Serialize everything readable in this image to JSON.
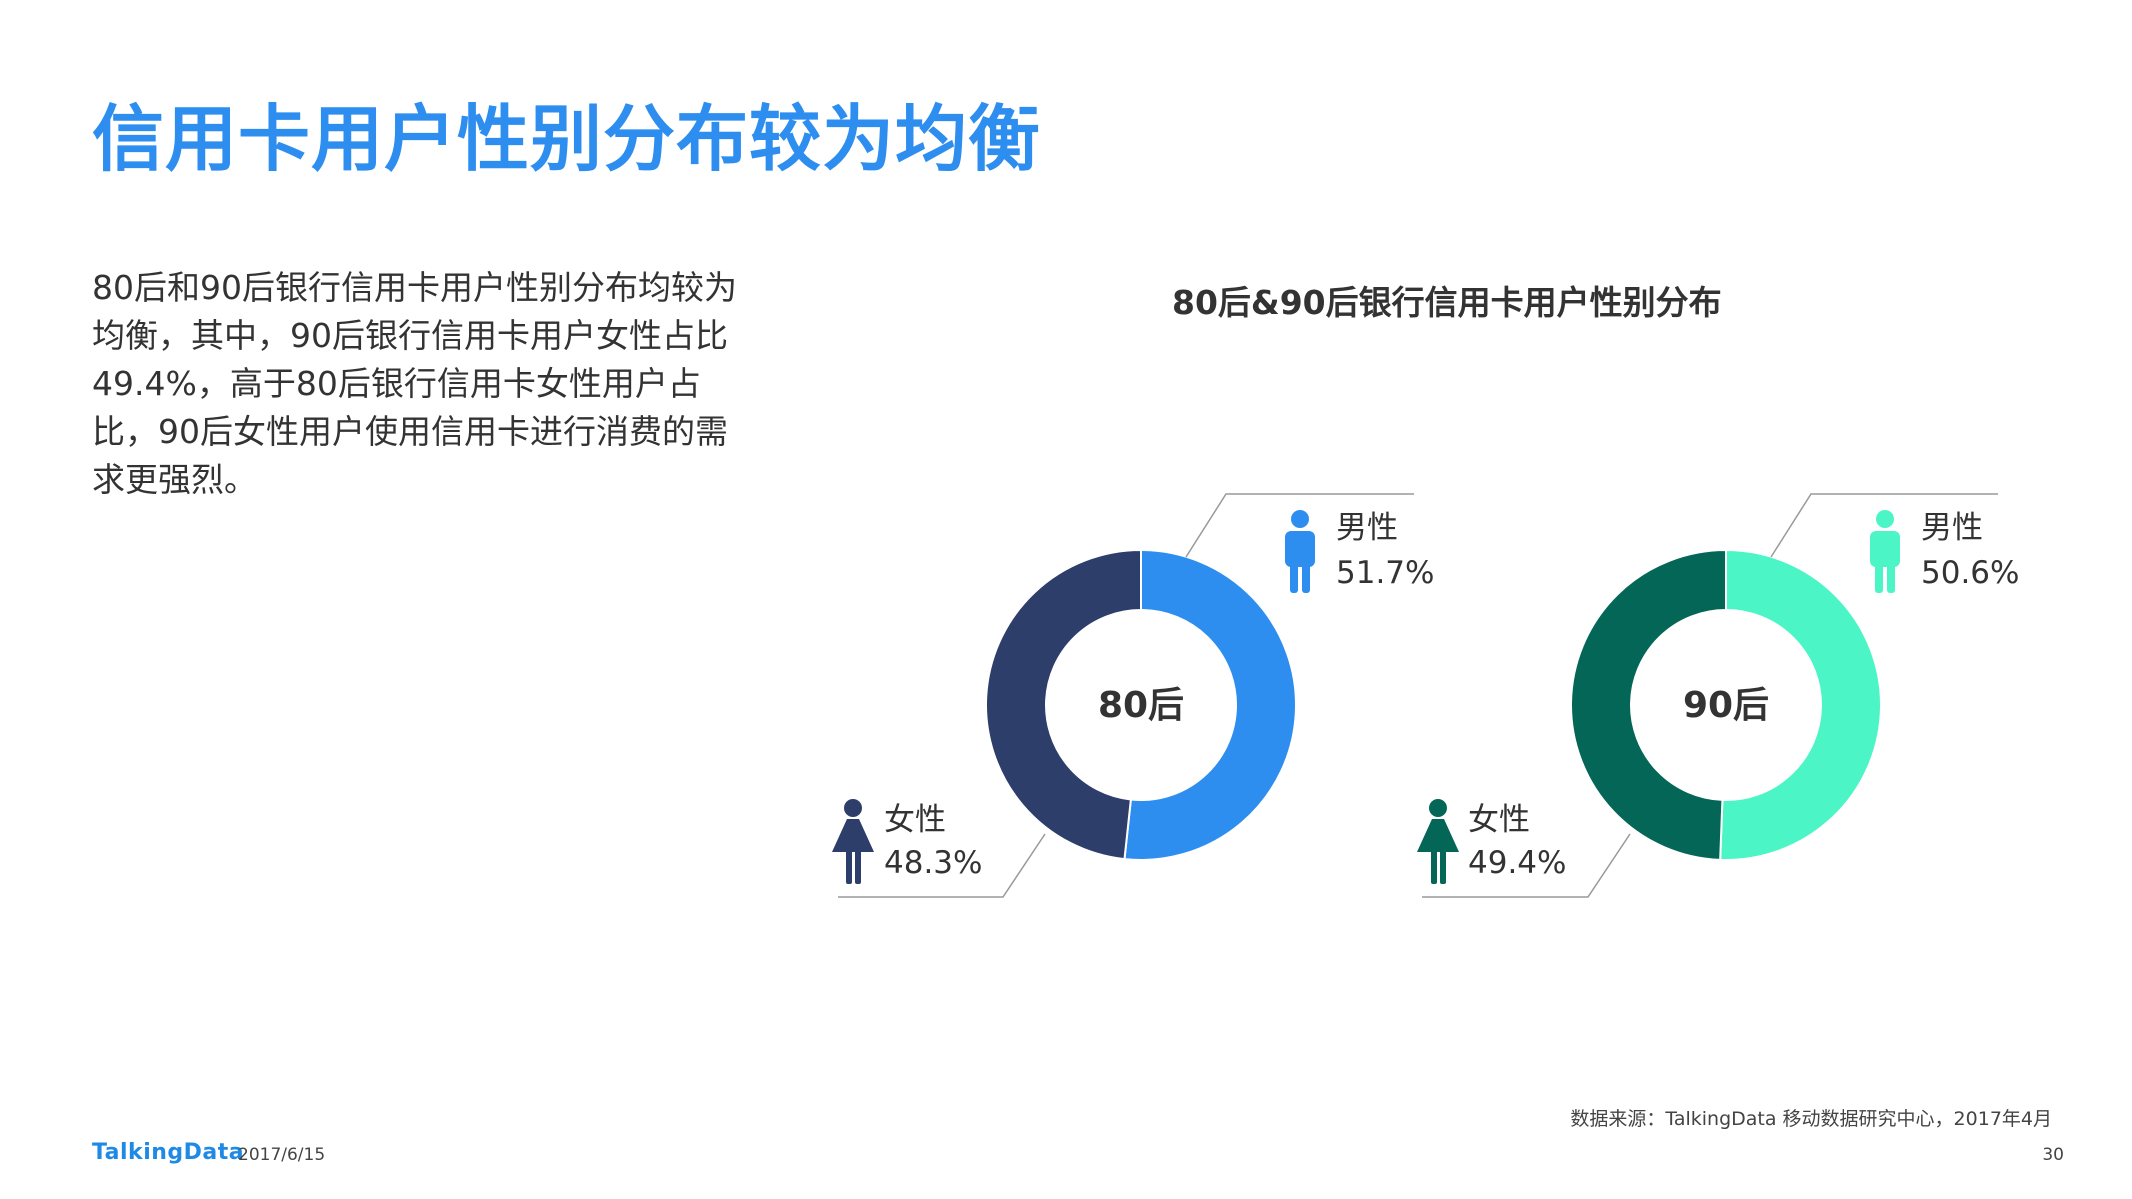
{
  "title": "信用卡用户性别分布较为均衡",
  "description": "80后和90后银行信用卡用户性别分布均较为均衡，其中，90后银行信用卡用户女性占比49.4%，高于80后银行信用卡女性用户占比，90后女性用户使用信用卡进行消费的需求更强烈。",
  "chart_title": "80后&90后银行信用卡用户性别分布",
  "chart_data": [
    {
      "type": "pie",
      "center_label": "80后",
      "categories": [
        "男性",
        "女性"
      ],
      "values": [
        51.7,
        48.3
      ],
      "value_labels": [
        "51.7%",
        "48.3%"
      ],
      "colors": [
        "#2e8ef0",
        "#2d3e6b"
      ]
    },
    {
      "type": "pie",
      "center_label": "90后",
      "categories": [
        "男性",
        "女性"
      ],
      "values": [
        50.6,
        49.4
      ],
      "value_labels": [
        "50.6%",
        "49.4%"
      ],
      "colors": [
        "#4cf5c6",
        "#046656"
      ]
    }
  ],
  "icons": {
    "male": "male-person-icon",
    "female": "female-person-icon"
  },
  "footer": {
    "logo": "TalkingData",
    "date": "2017/6/15",
    "source": "数据来源：TalkingData 移动数据研究中心，2017年4月",
    "page": "30"
  }
}
